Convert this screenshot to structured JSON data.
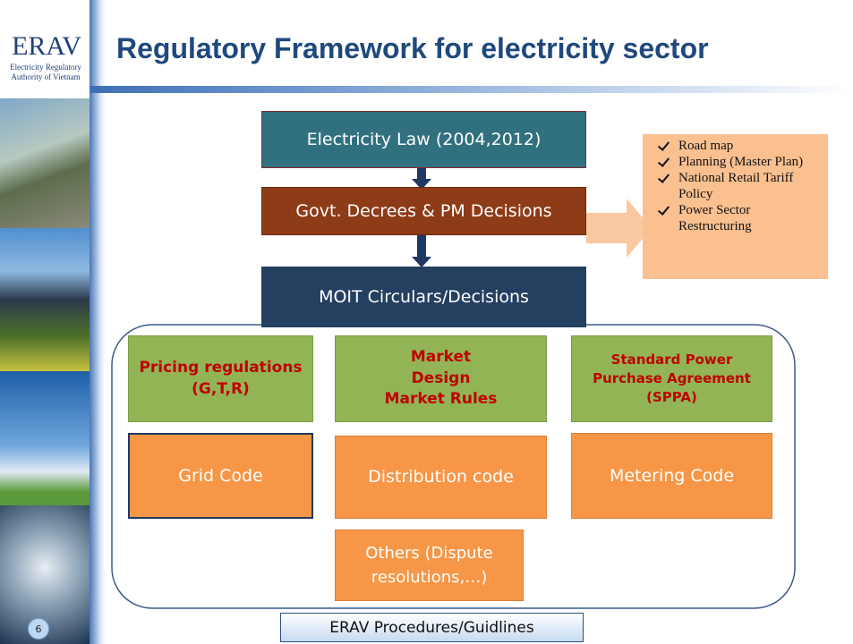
{
  "logo": {
    "name": "ERAV",
    "subtitle": "Electricity Regulatory Authority of Vietnam"
  },
  "title": "Regulatory Framework for electricity sector",
  "slide_number": 6,
  "nodes": [
    {
      "label": "Electricity Law (2004,2012)"
    },
    {
      "label": "Govt. Decrees & PM Decisions"
    },
    {
      "label": "MOIT Circulars/Decisions"
    },
    {
      "label": "Pricing regulations (G,T,R)"
    },
    {
      "label": "Market Design Market Rules"
    },
    {
      "label": "Standard Power Purchase Agreement (SPPA)"
    },
    {
      "label": "Grid Code"
    },
    {
      "label": "Distribution code"
    },
    {
      "label": "Metering Code"
    },
    {
      "label": "Others (Dispute resolutions,…)"
    },
    {
      "label": "ERAV Procedures/Guidlines"
    }
  ],
  "notes": [
    "Road map",
    "Planning (Master Plan)",
    "National Retail Tariff Policy",
    "Power Sector Restructuring"
  ]
}
